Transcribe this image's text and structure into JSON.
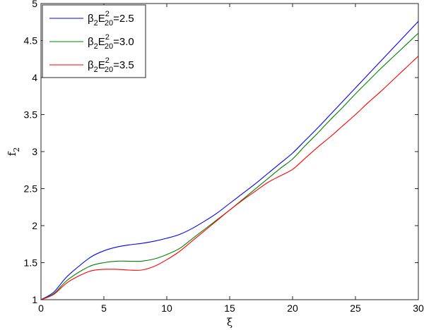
{
  "chart_data": {
    "type": "line",
    "title": "",
    "xlabel": "ξ",
    "ylabel": "f₂",
    "ylabel_main": "f",
    "ylabel_sub": "2",
    "xlim": [
      0,
      30
    ],
    "ylim": [
      1,
      5
    ],
    "xticks": [
      0,
      5,
      10,
      15,
      20,
      25,
      30
    ],
    "yticks": [
      1,
      1.5,
      2,
      2.5,
      3,
      3.5,
      4,
      4.5,
      5
    ],
    "xtick_labels": [
      "0",
      "5",
      "10",
      "15",
      "20",
      "25",
      "30"
    ],
    "ytick_labels": [
      "1",
      "1.5",
      "2",
      "2.5",
      "3",
      "3.5",
      "4",
      "4.5",
      "5"
    ],
    "grid": false,
    "legend_position": "upper left",
    "x": [
      0,
      1,
      2,
      3,
      4,
      5,
      6,
      7,
      8,
      9,
      10,
      11,
      12,
      13,
      14,
      15,
      16,
      17,
      18,
      19,
      20,
      21,
      22,
      23,
      24,
      25,
      26,
      27,
      28,
      29,
      30
    ],
    "series": [
      {
        "name": "β₂E²₂₀=2.5",
        "label_parts": {
          "a": "β",
          "a_sub": "2",
          "b": "E",
          "b_sup": "2",
          "b_sub": "20",
          "value": "=2.5"
        },
        "color": "#0000ff",
        "values": [
          1.0,
          1.1,
          1.3,
          1.45,
          1.58,
          1.66,
          1.71,
          1.74,
          1.76,
          1.79,
          1.83,
          1.88,
          1.96,
          2.06,
          2.17,
          2.3,
          2.43,
          2.56,
          2.7,
          2.84,
          2.98,
          3.15,
          3.32,
          3.5,
          3.68,
          3.86,
          4.04,
          4.22,
          4.4,
          4.58,
          4.76
        ]
      },
      {
        "name": "β₂E²₂₀=3.0",
        "label_parts": {
          "a": "β",
          "a_sub": "2",
          "b": "E",
          "b_sup": "2",
          "b_sub": "20",
          "value": "=3.0"
        },
        "color": "#008000",
        "values": [
          1.0,
          1.08,
          1.25,
          1.37,
          1.46,
          1.5,
          1.52,
          1.52,
          1.52,
          1.55,
          1.61,
          1.69,
          1.82,
          1.95,
          2.08,
          2.21,
          2.35,
          2.49,
          2.63,
          2.77,
          2.9,
          3.08,
          3.25,
          3.43,
          3.6,
          3.78,
          3.95,
          4.12,
          4.28,
          4.44,
          4.6
        ]
      },
      {
        "name": "β₂E²₂₀=3.5",
        "label_parts": {
          "a": "β",
          "a_sub": "2",
          "b": "E",
          "b_sup": "2",
          "b_sub": "20",
          "value": "=3.5"
        },
        "color": "#ff0000",
        "values": [
          1.0,
          1.07,
          1.22,
          1.32,
          1.39,
          1.41,
          1.41,
          1.4,
          1.4,
          1.45,
          1.54,
          1.65,
          1.79,
          1.93,
          2.07,
          2.21,
          2.34,
          2.46,
          2.58,
          2.67,
          2.76,
          2.91,
          3.06,
          3.2,
          3.35,
          3.5,
          3.66,
          3.81,
          3.97,
          4.13,
          4.29
        ]
      }
    ]
  }
}
